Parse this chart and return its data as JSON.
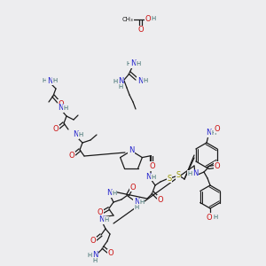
{
  "bg_color": "#ededef",
  "C": "#1a1a1a",
  "N": "#2222cc",
  "O": "#cc1111",
  "S": "#999900",
  "H": "#336666",
  "lw": 0.9,
  "fs": 6.0,
  "dpi": 100,
  "figsize": [
    3.0,
    3.0
  ]
}
